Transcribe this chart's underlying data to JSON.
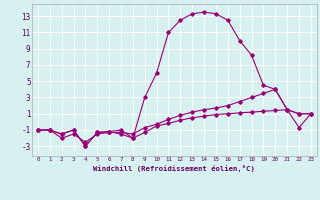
{
  "xlabel": "Windchill (Refroidissement éolien,°C)",
  "ylabel": "",
  "bg_color": "#d7f0f0",
  "grid_color": "#ffffff",
  "line_color": "#990077",
  "xlim": [
    -0.5,
    23.5
  ],
  "ylim": [
    -4.2,
    14.5
  ],
  "xticks": [
    0,
    1,
    2,
    3,
    4,
    5,
    6,
    7,
    8,
    9,
    10,
    11,
    12,
    13,
    14,
    15,
    16,
    17,
    18,
    19,
    20,
    21,
    22,
    23
  ],
  "yticks": [
    -3,
    -1,
    1,
    3,
    5,
    7,
    9,
    11,
    13
  ],
  "line1_x": [
    0,
    1,
    2,
    3,
    4,
    5,
    6,
    7,
    8,
    9,
    10,
    11,
    12,
    13,
    14,
    15,
    16,
    17,
    18,
    19,
    20,
    21,
    22,
    23
  ],
  "line1_y": [
    -1,
    -1,
    -1.5,
    -1,
    -3,
    -1.3,
    -1.2,
    -1,
    -2,
    -1.3,
    -0.5,
    -0.2,
    0.2,
    0.5,
    0.7,
    0.9,
    1.0,
    1.1,
    1.2,
    1.3,
    1.4,
    1.5,
    1.0,
    1.0
  ],
  "line2_x": [
    0,
    1,
    2,
    3,
    4,
    5,
    6,
    7,
    8,
    9,
    10,
    11,
    12,
    13,
    14,
    15,
    16,
    17,
    18,
    19,
    20,
    21,
    22,
    23
  ],
  "line2_y": [
    -1,
    -1,
    -1.5,
    -1,
    -3,
    -1.3,
    -1.2,
    -1.5,
    -2,
    3,
    6,
    11,
    12.5,
    13.3,
    13.5,
    13.3,
    12.5,
    10,
    8.2,
    4.5,
    4,
    1.5,
    -0.7,
    1.0
  ],
  "line3_x": [
    0,
    1,
    2,
    3,
    4,
    5,
    6,
    7,
    8,
    9,
    10,
    11,
    12,
    13,
    14,
    15,
    16,
    17,
    18,
    19,
    20,
    21,
    22,
    23
  ],
  "line3_y": [
    -1,
    -1,
    -2,
    -1.5,
    -2.5,
    -1.5,
    -1.3,
    -1.3,
    -1.5,
    -0.7,
    -0.3,
    0.3,
    0.8,
    1.2,
    1.5,
    1.7,
    2.0,
    2.5,
    3.0,
    3.5,
    4,
    1.5,
    1.0,
    1.0
  ]
}
